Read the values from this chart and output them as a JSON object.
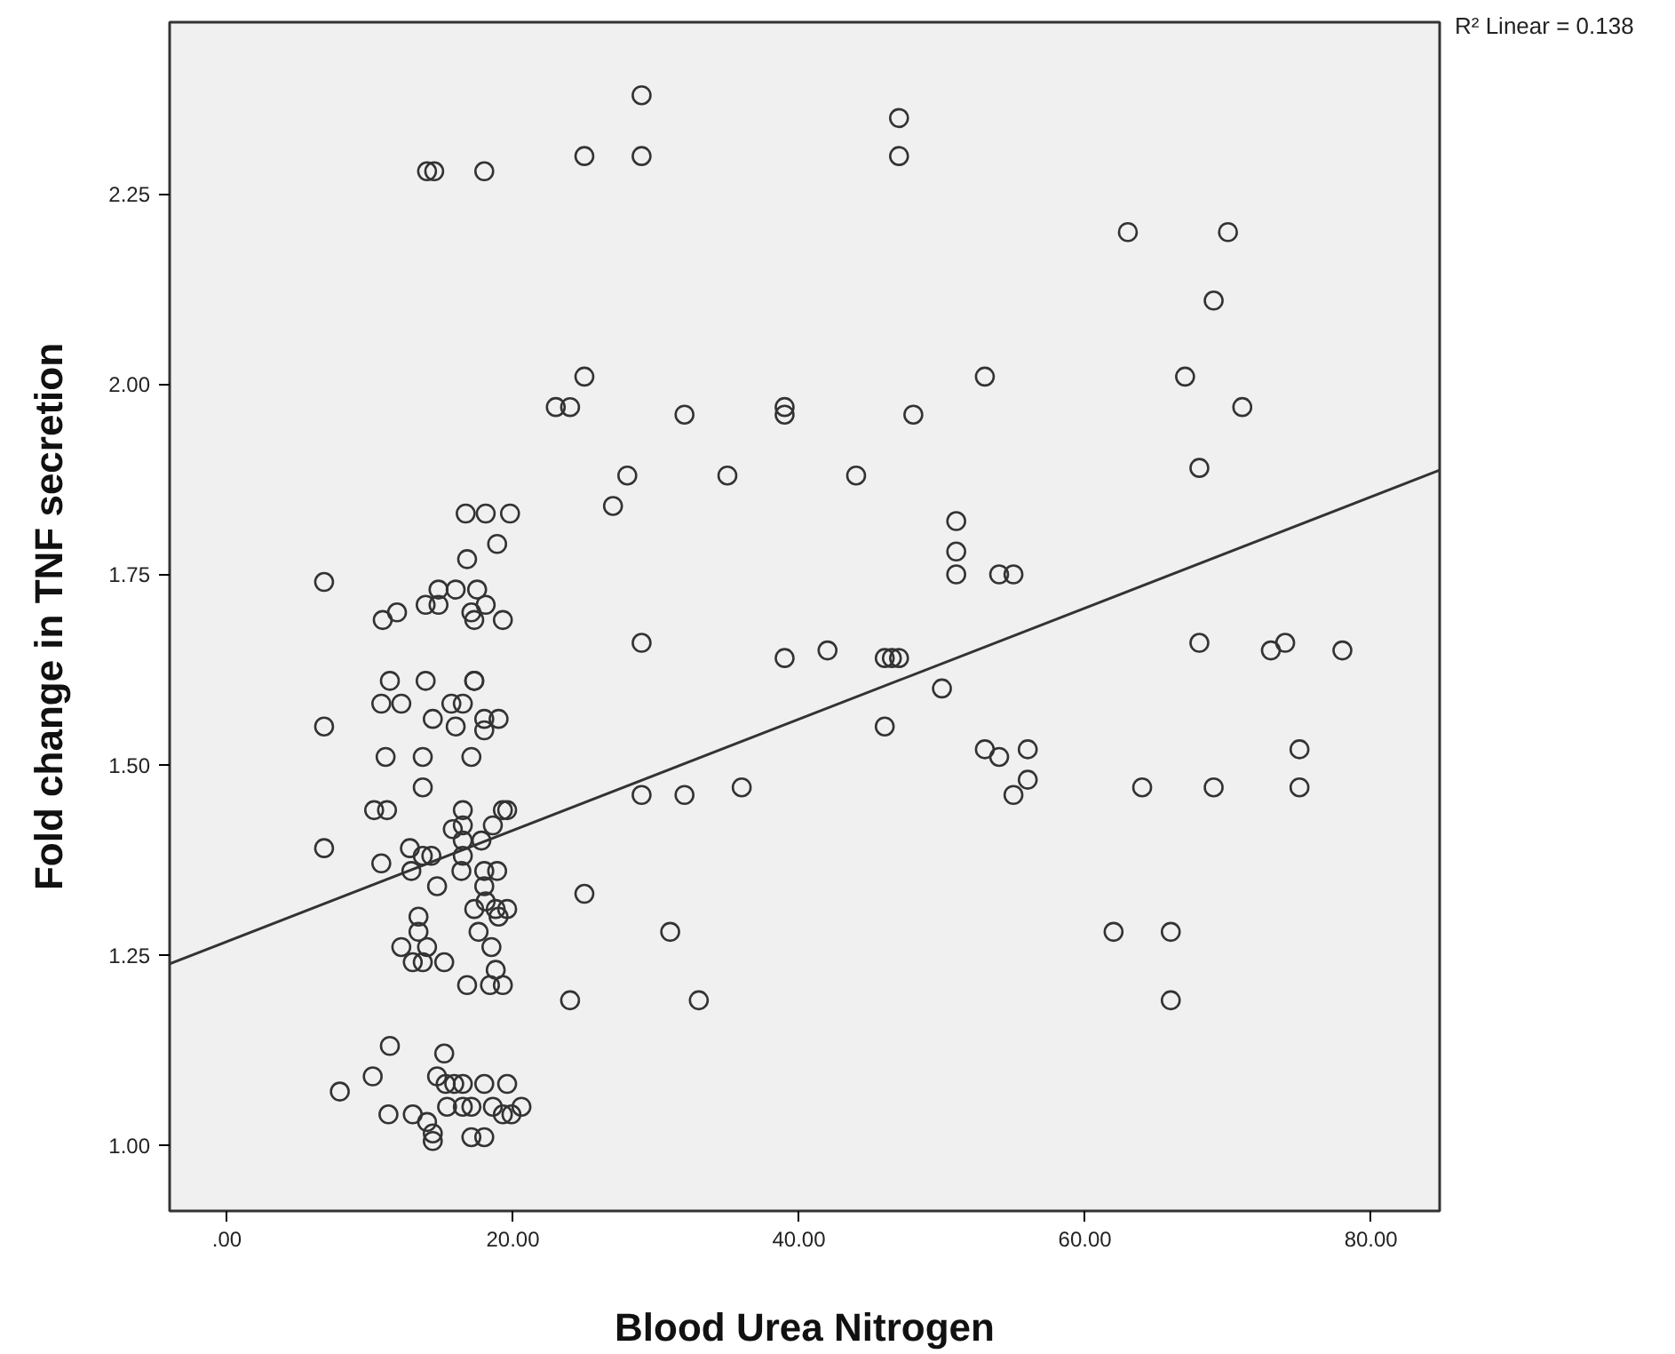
{
  "chart_data": {
    "type": "scatter",
    "xlabel": "Blood Urea Nitrogen",
    "ylabel": "Fold change in TNF secretion",
    "annotations": [
      "R² Linear = 0.138"
    ],
    "xlim": [
      -4,
      84.8
    ],
    "ylim": [
      0.913,
      2.476
    ],
    "xticks": [
      {
        "value": 0,
        "label": ".00"
      },
      {
        "value": 20,
        "label": "20.00"
      },
      {
        "value": 40,
        "label": "40.00"
      },
      {
        "value": 60,
        "label": "60.00"
      },
      {
        "value": 80,
        "label": "80.00"
      }
    ],
    "yticks": [
      {
        "value": 1,
        "label": "1.00"
      },
      {
        "value": 1.25,
        "label": "1.25"
      },
      {
        "value": 1.5,
        "label": "1.50"
      },
      {
        "value": 1.75,
        "label": "1.75"
      },
      {
        "value": 2,
        "label": "2.00"
      },
      {
        "value": 2.25,
        "label": "2.25"
      }
    ],
    "grid": false,
    "series": [
      {
        "marker": "circle",
        "color": "#333333",
        "x": [
          14,
          14.5,
          18,
          25,
          29,
          29,
          47,
          47,
          23,
          24,
          25,
          32,
          39,
          39,
          48,
          53,
          63,
          70,
          69,
          67,
          71,
          68,
          28,
          35,
          44,
          27,
          51,
          51,
          51,
          54,
          55,
          29,
          39,
          42,
          46,
          46.5,
          47,
          50,
          46,
          53,
          54,
          56,
          56,
          55,
          64,
          69,
          75,
          75,
          73,
          74,
          68,
          78,
          36,
          29,
          32,
          25,
          31,
          24,
          33,
          62,
          66,
          66,
          16.7,
          18.1,
          19.8,
          18.9,
          16.8,
          6.8,
          14.8,
          16,
          17.5,
          14.8,
          13.9,
          10.9,
          11.9,
          17.1,
          18.1,
          17.3,
          19.3,
          11.4,
          13.9,
          17.3,
          17.3,
          10.8,
          12.2,
          15.7,
          16.5,
          6.8,
          14.4,
          16,
          18,
          19,
          18,
          11.1,
          13.7,
          17.1,
          13.7,
          10.3,
          11.2,
          16.5,
          19.3,
          6.8,
          16.5,
          16.5,
          16.5,
          15.8,
          17.8,
          18.6,
          19.6,
          12.8,
          13.7,
          14.3,
          10.8,
          12.9,
          14.7,
          16.4,
          18,
          18.9,
          18,
          18.1,
          18.8,
          17.3,
          19,
          19.6,
          13.4,
          13.4,
          12.2,
          14,
          13,
          13.7,
          15.2,
          17.6,
          18.5,
          18.8,
          16.8,
          18.4,
          19.3,
          11.4,
          15.2,
          10.2,
          7.9,
          14.7,
          15.3,
          15.9,
          16.5,
          18,
          19.6,
          11.3,
          13,
          14,
          14.4,
          14.4,
          15.4,
          16.5,
          17.1,
          18.6,
          19.3,
          19.9,
          20.6,
          17.1,
          18
        ],
        "values": [
          2.28,
          2.28,
          2.28,
          2.3,
          2.3,
          2.38,
          2.35,
          2.3,
          1.97,
          1.97,
          2.01,
          1.96,
          1.97,
          1.96,
          1.96,
          2.01,
          2.2,
          2.2,
          2.11,
          2.01,
          1.97,
          1.89,
          1.88,
          1.88,
          1.88,
          1.84,
          1.82,
          1.78,
          1.75,
          1.75,
          1.75,
          1.66,
          1.64,
          1.65,
          1.64,
          1.64,
          1.64,
          1.6,
          1.55,
          1.52,
          1.51,
          1.52,
          1.48,
          1.46,
          1.47,
          1.47,
          1.47,
          1.52,
          1.65,
          1.66,
          1.66,
          1.65,
          1.47,
          1.46,
          1.46,
          1.33,
          1.28,
          1.19,
          1.19,
          1.28,
          1.28,
          1.19,
          1.83,
          1.83,
          1.83,
          1.79,
          1.77,
          1.74,
          1.73,
          1.73,
          1.73,
          1.71,
          1.71,
          1.69,
          1.7,
          1.7,
          1.71,
          1.69,
          1.69,
          1.61,
          1.61,
          1.61,
          1.61,
          1.58,
          1.58,
          1.58,
          1.58,
          1.55,
          1.56,
          1.55,
          1.56,
          1.56,
          1.545,
          1.51,
          1.51,
          1.51,
          1.47,
          1.44,
          1.44,
          1.44,
          1.44,
          1.39,
          1.42,
          1.4,
          1.38,
          1.415,
          1.4,
          1.42,
          1.44,
          1.39,
          1.38,
          1.38,
          1.37,
          1.36,
          1.34,
          1.36,
          1.36,
          1.36,
          1.34,
          1.32,
          1.31,
          1.31,
          1.3,
          1.31,
          1.3,
          1.28,
          1.26,
          1.26,
          1.24,
          1.24,
          1.24,
          1.28,
          1.26,
          1.23,
          1.21,
          1.21,
          1.21,
          1.13,
          1.12,
          1.09,
          1.07,
          1.09,
          1.08,
          1.08,
          1.08,
          1.08,
          1.08,
          1.04,
          1.04,
          1.03,
          1.015,
          1.005,
          1.05,
          1.05,
          1.05,
          1.05,
          1.04,
          1.04,
          1.05,
          1.01,
          1.01
        ]
      },
      {
        "type": "line",
        "color": "#333333",
        "x": [
          -4,
          84.8
        ],
        "values": [
          1.238,
          1.887
        ]
      }
    ]
  }
}
